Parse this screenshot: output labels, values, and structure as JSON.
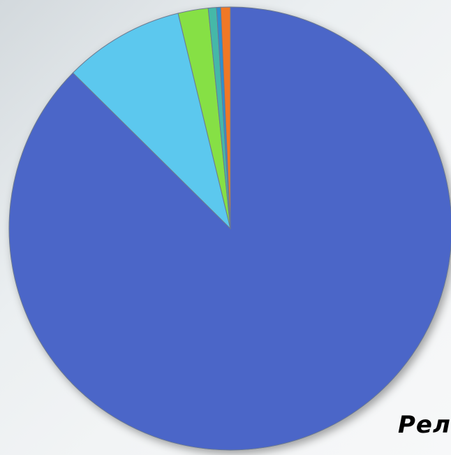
{
  "caption": "Рел",
  "chart_data": {
    "type": "pie",
    "title": "",
    "start_angle_deg": 90,
    "direction": "clockwise",
    "slices": [
      {
        "value": 87.4,
        "color": "#4b66c8"
      },
      {
        "value": 8.8,
        "color": "#5bc8ee"
      },
      {
        "value": 2.2,
        "color": "#86e045"
      },
      {
        "value": 0.6,
        "color": "#45b8a8"
      },
      {
        "value": 0.3,
        "color": "#2f8fd0"
      },
      {
        "value": 0.7,
        "color": "#f07828"
      }
    ],
    "legend": "none",
    "data_labels": false
  }
}
